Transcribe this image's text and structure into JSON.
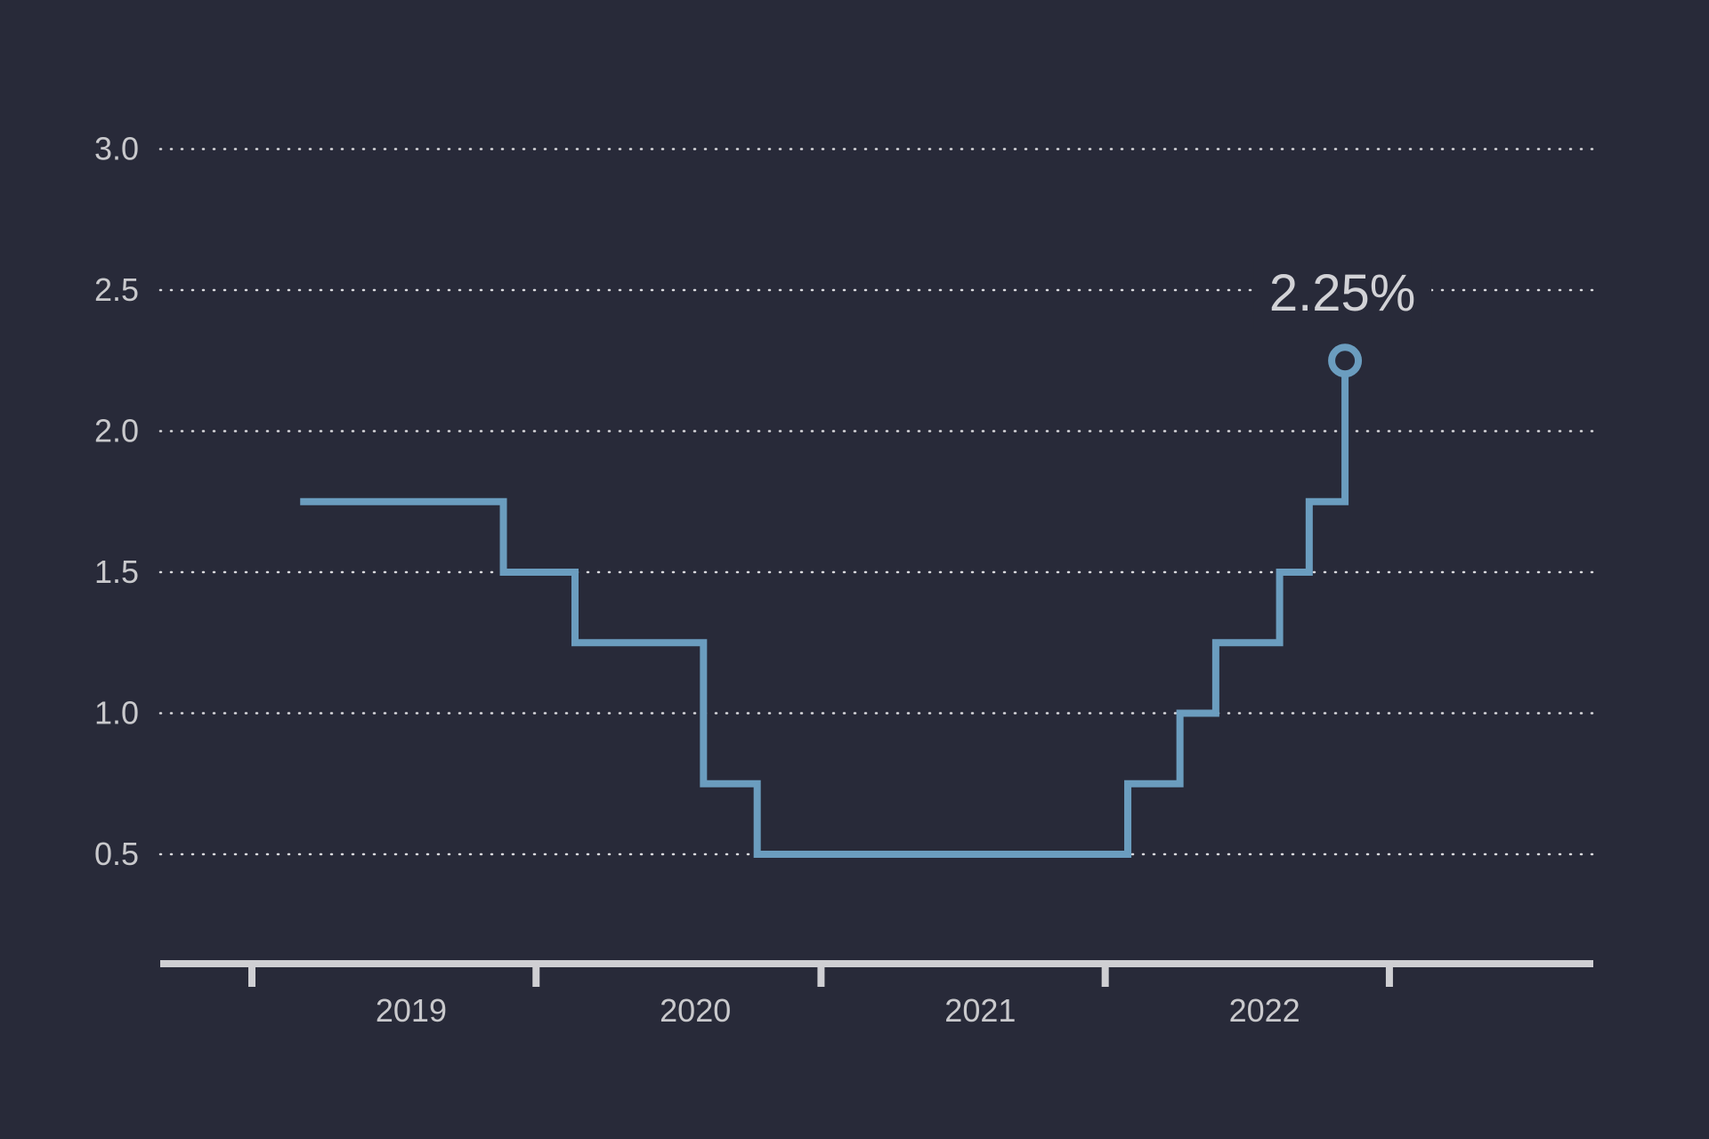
{
  "chart_data": {
    "type": "line",
    "step": true,
    "title": "",
    "xlabel": "",
    "ylabel": "",
    "ylim": [
      0,
      3.0
    ],
    "yticks": [
      0.5,
      1.0,
      1.5,
      2.0,
      2.5,
      3.0
    ],
    "ytick_labels": [
      "0.5",
      "1.0",
      "1.5",
      "2.0",
      "2.5",
      "3.0"
    ],
    "grid": "horizontal dotted",
    "xlim": [
      "2018-07-01",
      "2022-12-31"
    ],
    "xticks": [
      "2018-07-01",
      "2019-07-01",
      "2020-07-01",
      "2021-07-01",
      "2022-07-01"
    ],
    "x_labels": [
      {
        "label": "2019",
        "date": "2019-01-01"
      },
      {
        "label": "2020",
        "date": "2020-01-01"
      },
      {
        "label": "2021",
        "date": "2021-01-01"
      },
      {
        "label": "2022",
        "date": "2022-01-01"
      }
    ],
    "series": [
      {
        "color": "#6b9dbf",
        "points": [
          {
            "x": "2018-09-01",
            "y": 1.75
          },
          {
            "x": "2019-05-20",
            "y": 1.5
          },
          {
            "x": "2019-08-20",
            "y": 1.25
          },
          {
            "x": "2020-02-01",
            "y": 0.75
          },
          {
            "x": "2020-04-10",
            "y": 0.5
          },
          {
            "x": "2021-07-30",
            "y": 0.75
          },
          {
            "x": "2021-10-05",
            "y": 1.0
          },
          {
            "x": "2021-11-20",
            "y": 1.25
          },
          {
            "x": "2022-02-10",
            "y": 1.5
          },
          {
            "x": "2022-03-20",
            "y": 1.75
          },
          {
            "x": "2022-05-05",
            "y": 2.25
          }
        ]
      }
    ],
    "annotation": {
      "text": "2.25%",
      "x": "2022-05-05",
      "y": 2.25
    }
  },
  "colors": {
    "background": "#282a39",
    "line": "#6b9dbf",
    "grid": "#d8d8dc",
    "axis": "#cfcfd3",
    "text": "#c9c9cc"
  }
}
